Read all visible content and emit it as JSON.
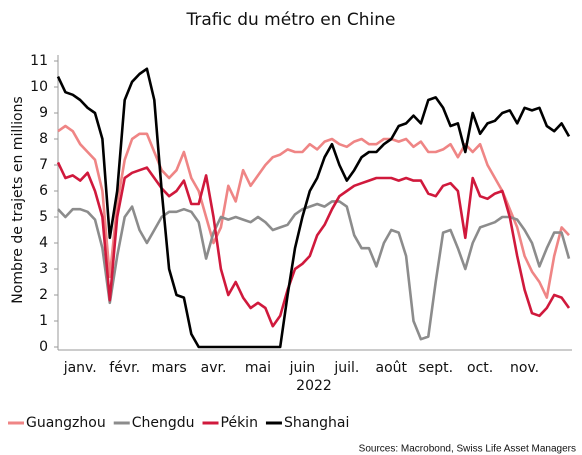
{
  "chart_data": {
    "type": "line",
    "title": "Trafic du métro en Chine",
    "y_label": "Nombre de trajets en millions",
    "x_label": "2022",
    "source": "Sources: Macrobond, Swiss Life Asset Managers",
    "categories": [
      null,
      null,
      null,
      "janv.",
      null,
      null,
      null,
      null,
      null,
      "févr.",
      null,
      null,
      null,
      null,
      null,
      "mars",
      null,
      null,
      null,
      null,
      null,
      "avr.",
      null,
      null,
      null,
      null,
      null,
      "mai",
      null,
      null,
      null,
      null,
      null,
      "juin",
      null,
      null,
      null,
      null,
      null,
      "juil.",
      null,
      null,
      null,
      null,
      null,
      "août",
      null,
      null,
      null,
      null,
      null,
      "sept.",
      null,
      null,
      null,
      null,
      null,
      "oct.",
      null,
      null,
      null,
      null,
      null,
      "nov.",
      null,
      null,
      null,
      null,
      null,
      null
    ],
    "ylim": [
      0,
      11
    ],
    "yticks": [
      0,
      1,
      2,
      3,
      4,
      5,
      6,
      7,
      8,
      9,
      10,
      11
    ],
    "legend": "bottom",
    "series": [
      {
        "name": "Guangzhou",
        "color": "#ef8585",
        "values": [
          8.3,
          8.5,
          8.3,
          7.8,
          7.5,
          7.2,
          6.0,
          2.7,
          5.5,
          7.2,
          8.0,
          8.2,
          8.2,
          7.5,
          6.8,
          6.5,
          6.8,
          7.5,
          6.5,
          6.0,
          5.0,
          4.0,
          4.6,
          6.2,
          5.6,
          6.8,
          6.2,
          6.6,
          7.0,
          7.3,
          7.4,
          7.6,
          7.5,
          7.5,
          7.8,
          7.6,
          7.9,
          8.0,
          7.8,
          7.7,
          7.9,
          8.0,
          7.8,
          7.8,
          8.0,
          8.0,
          7.9,
          8.0,
          7.7,
          7.9,
          7.5,
          7.5,
          7.6,
          7.8,
          7.3,
          7.8,
          7.5,
          7.8,
          7.0,
          6.5,
          6.0,
          5.3,
          4.6,
          3.5,
          2.9,
          2.5,
          1.9,
          3.5,
          4.6,
          4.3
        ]
      },
      {
        "name": "Chengdu",
        "color": "#8c8c8c",
        "values": [
          5.3,
          5.0,
          5.3,
          5.3,
          5.2,
          4.9,
          3.8,
          1.7,
          3.5,
          5.0,
          5.4,
          4.5,
          4.0,
          4.5,
          5.0,
          5.2,
          5.2,
          5.3,
          5.2,
          4.8,
          3.4,
          4.4,
          5.0,
          4.9,
          5.0,
          4.9,
          4.8,
          5.0,
          4.8,
          4.5,
          4.6,
          4.7,
          5.1,
          5.3,
          5.4,
          5.5,
          5.4,
          5.6,
          5.6,
          5.4,
          4.3,
          3.8,
          3.8,
          3.1,
          4.0,
          4.5,
          4.4,
          3.5,
          1.0,
          0.3,
          0.4,
          2.5,
          4.4,
          4.5,
          3.8,
          3.0,
          4.0,
          4.6,
          4.7,
          4.8,
          5.0,
          5.0,
          4.9,
          4.5,
          4.0,
          3.1,
          3.8,
          4.4,
          4.4,
          3.4
        ]
      },
      {
        "name": "Pékin",
        "color": "#d0193c",
        "values": [
          7.1,
          6.5,
          6.6,
          6.4,
          6.7,
          6.0,
          5.0,
          1.8,
          5.0,
          6.5,
          6.7,
          6.8,
          6.9,
          6.5,
          6.1,
          5.8,
          6.0,
          6.4,
          5.5,
          5.5,
          6.6,
          5.0,
          3.0,
          2.0,
          2.5,
          1.9,
          1.5,
          1.7,
          1.5,
          0.8,
          1.2,
          2.2,
          3.0,
          3.2,
          3.5,
          4.3,
          4.7,
          5.3,
          5.8,
          6.0,
          6.2,
          6.3,
          6.4,
          6.5,
          6.5,
          6.5,
          6.4,
          6.5,
          6.4,
          6.4,
          5.9,
          5.8,
          6.2,
          6.3,
          6.0,
          4.2,
          6.5,
          5.8,
          5.7,
          5.9,
          6.0,
          5.0,
          3.5,
          2.2,
          1.3,
          1.2,
          1.5,
          2.0,
          1.9,
          1.5
        ]
      },
      {
        "name": "Shanghai",
        "color": "#000000",
        "values": [
          10.4,
          9.8,
          9.7,
          9.5,
          9.2,
          9.0,
          8.0,
          4.2,
          6.0,
          9.5,
          10.2,
          10.5,
          10.7,
          9.5,
          6.0,
          3.0,
          2.0,
          1.9,
          0.5,
          0,
          0,
          0,
          0,
          0,
          0,
          0,
          0,
          0,
          0,
          0,
          0,
          2.0,
          3.8,
          5.0,
          6.0,
          6.5,
          7.3,
          7.8,
          7.0,
          6.4,
          6.8,
          7.3,
          7.5,
          7.5,
          7.8,
          8.0,
          8.5,
          8.6,
          8.9,
          8.6,
          9.5,
          9.6,
          9.2,
          8.5,
          8.6,
          7.5,
          9.0,
          8.2,
          8.6,
          8.7,
          9.0,
          9.1,
          8.6,
          9.2,
          9.1,
          9.2,
          8.5,
          8.3,
          8.6,
          8.1
        ]
      }
    ]
  }
}
